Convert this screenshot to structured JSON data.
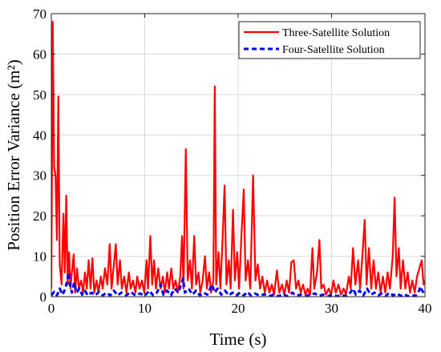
{
  "chart_data": {
    "type": "line",
    "xlabel": "Time (s)",
    "ylabel": "Position Error Variance (m²)",
    "xlim": [
      0,
      40
    ],
    "ylim": [
      0,
      70
    ],
    "xticks": [
      0,
      10,
      20,
      30,
      40
    ],
    "yticks": [
      0,
      10,
      20,
      30,
      40,
      50,
      60,
      70
    ],
    "grid": true,
    "legend_position": "top-right",
    "series": [
      {
        "name": "Three-Satellite Solution",
        "color": "#ff0000",
        "style": "solid",
        "points": [
          [
            0,
            2
          ],
          [
            0.15,
            68
          ],
          [
            0.3,
            32
          ],
          [
            0.45,
            30
          ],
          [
            0.6,
            14
          ],
          [
            0.75,
            49.5
          ],
          [
            0.9,
            8
          ],
          [
            1.1,
            3
          ],
          [
            1.3,
            20.5
          ],
          [
            1.45,
            6
          ],
          [
            1.6,
            25
          ],
          [
            1.75,
            3
          ],
          [
            1.9,
            11
          ],
          [
            2.05,
            2
          ],
          [
            2.2,
            6
          ],
          [
            2.4,
            10.5
          ],
          [
            2.55,
            1
          ],
          [
            2.75,
            7
          ],
          [
            2.95,
            2
          ],
          [
            3.2,
            4
          ],
          [
            3.4,
            1
          ],
          [
            3.6,
            6
          ],
          [
            3.8,
            2
          ],
          [
            4.0,
            9
          ],
          [
            4.2,
            2
          ],
          [
            4.4,
            9.5
          ],
          [
            4.6,
            1
          ],
          [
            4.85,
            4
          ],
          [
            5.05,
            1
          ],
          [
            5.3,
            5
          ],
          [
            5.5,
            2
          ],
          [
            5.75,
            7
          ],
          [
            6.0,
            3
          ],
          [
            6.25,
            13
          ],
          [
            6.45,
            2
          ],
          [
            6.7,
            8
          ],
          [
            6.9,
            13
          ],
          [
            7.1,
            3
          ],
          [
            7.35,
            9
          ],
          [
            7.55,
            2
          ],
          [
            7.8,
            5
          ],
          [
            8.05,
            1
          ],
          [
            8.3,
            6
          ],
          [
            8.5,
            2
          ],
          [
            8.75,
            4
          ],
          [
            9.0,
            1
          ],
          [
            9.2,
            5
          ],
          [
            9.45,
            2
          ],
          [
            9.7,
            4
          ],
          [
            9.95,
            1
          ],
          [
            10.2,
            9
          ],
          [
            10.35,
            2
          ],
          [
            10.6,
            15
          ],
          [
            10.8,
            3
          ],
          [
            11.0,
            9
          ],
          [
            11.2,
            2
          ],
          [
            11.45,
            7
          ],
          [
            11.7,
            2
          ],
          [
            11.95,
            5
          ],
          [
            12.15,
            1
          ],
          [
            12.4,
            6
          ],
          [
            12.6,
            2
          ],
          [
            12.85,
            7
          ],
          [
            13.05,
            2
          ],
          [
            13.3,
            4
          ],
          [
            13.55,
            1
          ],
          [
            13.8,
            5
          ],
          [
            14.0,
            15
          ],
          [
            14.15,
            2
          ],
          [
            14.4,
            36.5
          ],
          [
            14.6,
            4
          ],
          [
            14.85,
            9
          ],
          [
            15.05,
            2
          ],
          [
            15.3,
            15
          ],
          [
            15.5,
            3
          ],
          [
            15.75,
            6
          ],
          [
            15.95,
            1
          ],
          [
            16.2,
            4
          ],
          [
            16.45,
            10
          ],
          [
            16.65,
            2
          ],
          [
            16.9,
            6
          ],
          [
            17.1,
            1
          ],
          [
            17.35,
            4
          ],
          [
            17.5,
            52
          ],
          [
            17.65,
            3
          ],
          [
            17.9,
            11
          ],
          [
            18.1,
            2
          ],
          [
            18.35,
            15
          ],
          [
            18.55,
            27.5
          ],
          [
            18.75,
            3
          ],
          [
            19.0,
            9
          ],
          [
            19.2,
            2
          ],
          [
            19.45,
            21.5
          ],
          [
            19.65,
            4
          ],
          [
            19.9,
            11
          ],
          [
            20.1,
            2
          ],
          [
            20.35,
            15
          ],
          [
            20.6,
            26.5
          ],
          [
            20.8,
            4
          ],
          [
            21.05,
            9
          ],
          [
            21.3,
            2
          ],
          [
            21.6,
            30
          ],
          [
            21.85,
            4
          ],
          [
            22.1,
            8
          ],
          [
            22.35,
            2
          ],
          [
            22.6,
            5
          ],
          [
            22.85,
            1
          ],
          [
            23.1,
            4
          ],
          [
            23.35,
            1
          ],
          [
            23.6,
            3
          ],
          [
            23.85,
            0.5
          ],
          [
            24.15,
            6.5
          ],
          [
            24.4,
            1
          ],
          [
            24.7,
            3
          ],
          [
            24.95,
            0.5
          ],
          [
            25.2,
            4
          ],
          [
            25.45,
            1
          ],
          [
            25.7,
            8.5
          ],
          [
            25.95,
            9
          ],
          [
            26.2,
            2
          ],
          [
            26.45,
            4
          ],
          [
            26.7,
            1
          ],
          [
            26.95,
            3
          ],
          [
            27.2,
            0.5
          ],
          [
            27.45,
            2
          ],
          [
            27.7,
            0.5
          ],
          [
            27.95,
            12
          ],
          [
            28.15,
            2
          ],
          [
            28.45,
            6
          ],
          [
            28.7,
            14
          ],
          [
            28.9,
            2
          ],
          [
            29.15,
            3
          ],
          [
            29.4,
            0.5
          ],
          [
            29.7,
            2
          ],
          [
            29.95,
            0.5
          ],
          [
            30.2,
            4
          ],
          [
            30.45,
            1
          ],
          [
            30.75,
            3
          ],
          [
            31.0,
            0.5
          ],
          [
            31.3,
            2
          ],
          [
            31.55,
            0.5
          ],
          [
            31.85,
            5
          ],
          [
            32.05,
            2
          ],
          [
            32.3,
            12
          ],
          [
            32.55,
            3
          ],
          [
            32.85,
            9
          ],
          [
            33.05,
            2
          ],
          [
            33.3,
            10
          ],
          [
            33.55,
            19
          ],
          [
            33.75,
            3
          ],
          [
            34.0,
            12
          ],
          [
            34.25,
            2
          ],
          [
            34.5,
            9
          ],
          [
            34.75,
            2
          ],
          [
            35.0,
            6
          ],
          [
            35.25,
            1
          ],
          [
            35.5,
            5
          ],
          [
            35.75,
            1
          ],
          [
            36.0,
            6
          ],
          [
            36.25,
            2
          ],
          [
            36.55,
            10
          ],
          [
            36.75,
            24.5
          ],
          [
            36.95,
            5
          ],
          [
            37.2,
            12
          ],
          [
            37.4,
            2
          ],
          [
            37.65,
            9
          ],
          [
            37.9,
            2
          ],
          [
            38.15,
            6
          ],
          [
            38.4,
            1
          ],
          [
            38.65,
            4
          ],
          [
            38.9,
            1
          ],
          [
            39.15,
            5
          ],
          [
            39.4,
            7
          ],
          [
            39.65,
            9
          ],
          [
            39.85,
            3
          ],
          [
            40.0,
            4
          ]
        ]
      },
      {
        "name": "Four-Satellite Solution",
        "color": "#0000ff",
        "style": "dashed",
        "points": [
          [
            0,
            0.3
          ],
          [
            0.3,
            1.2
          ],
          [
            0.6,
            0.3
          ],
          [
            0.9,
            2
          ],
          [
            1.2,
            0.5
          ],
          [
            1.5,
            2
          ],
          [
            1.7,
            4
          ],
          [
            1.85,
            6
          ],
          [
            2.0,
            3
          ],
          [
            2.2,
            1
          ],
          [
            2.45,
            3.5
          ],
          [
            2.7,
            1
          ],
          [
            3.0,
            2
          ],
          [
            3.3,
            0.5
          ],
          [
            3.6,
            1.5
          ],
          [
            3.9,
            0.3
          ],
          [
            4.3,
            1
          ],
          [
            4.7,
            0.3
          ],
          [
            5.1,
            1.2
          ],
          [
            5.5,
            0.3
          ],
          [
            5.9,
            1
          ],
          [
            6.3,
            0.3
          ],
          [
            6.7,
            1.5
          ],
          [
            7.1,
            0.3
          ],
          [
            7.5,
            1
          ],
          [
            8.0,
            0.3
          ],
          [
            8.5,
            1.2
          ],
          [
            9.0,
            0.3
          ],
          [
            9.5,
            0.8
          ],
          [
            10.0,
            0.2
          ],
          [
            10.5,
            1.5
          ],
          [
            10.9,
            0.3
          ],
          [
            11.3,
            1
          ],
          [
            11.7,
            3
          ],
          [
            12.0,
            0.5
          ],
          [
            12.4,
            1.5
          ],
          [
            12.8,
            0.3
          ],
          [
            13.2,
            2
          ],
          [
            13.6,
            1
          ],
          [
            13.9,
            3
          ],
          [
            14.1,
            4.5
          ],
          [
            14.3,
            1
          ],
          [
            14.7,
            2
          ],
          [
            15.1,
            0.5
          ],
          [
            15.5,
            1.5
          ],
          [
            15.9,
            0.3
          ],
          [
            16.3,
            1
          ],
          [
            16.7,
            0.5
          ],
          [
            17.0,
            2
          ],
          [
            17.2,
            3
          ],
          [
            17.5,
            1
          ],
          [
            17.8,
            2
          ],
          [
            18.2,
            0.5
          ],
          [
            18.6,
            1.5
          ],
          [
            19.0,
            0.3
          ],
          [
            19.4,
            1
          ],
          [
            19.8,
            0.3
          ],
          [
            20.2,
            1
          ],
          [
            20.6,
            0.3
          ],
          [
            21.0,
            1.2
          ],
          [
            21.4,
            0.2
          ],
          [
            21.8,
            0.8
          ],
          [
            22.3,
            0.2
          ],
          [
            22.8,
            0.6
          ],
          [
            23.3,
            0.1
          ],
          [
            23.8,
            0.5
          ],
          [
            24.3,
            0.1
          ],
          [
            24.8,
            0.6
          ],
          [
            25.3,
            0.1
          ],
          [
            25.8,
            1
          ],
          [
            26.2,
            0.2
          ],
          [
            26.7,
            0.5
          ],
          [
            27.2,
            0.1
          ],
          [
            27.7,
            0.5
          ],
          [
            28.2,
            0.8
          ],
          [
            28.6,
            0.2
          ],
          [
            29.1,
            0.5
          ],
          [
            29.6,
            0.1
          ],
          [
            30.1,
            0.5
          ],
          [
            30.6,
            0.1
          ],
          [
            31.1,
            0.4
          ],
          [
            31.6,
            0.1
          ],
          [
            32.0,
            1
          ],
          [
            32.3,
            2
          ],
          [
            32.6,
            0.5
          ],
          [
            33.0,
            1.5
          ],
          [
            33.4,
            0.3
          ],
          [
            33.8,
            2
          ],
          [
            34.2,
            0.5
          ],
          [
            34.6,
            1
          ],
          [
            35.0,
            0.3
          ],
          [
            35.4,
            0.8
          ],
          [
            35.8,
            0.2
          ],
          [
            36.2,
            1
          ],
          [
            36.6,
            0.3
          ],
          [
            37.0,
            0.8
          ],
          [
            37.4,
            0.2
          ],
          [
            37.8,
            0.6
          ],
          [
            38.2,
            0.1
          ],
          [
            38.6,
            0.4
          ],
          [
            39.0,
            0.2
          ],
          [
            39.3,
            1
          ],
          [
            39.5,
            2.5
          ],
          [
            39.7,
            1.5
          ],
          [
            39.85,
            1
          ],
          [
            40.0,
            0.5
          ]
        ]
      }
    ]
  }
}
